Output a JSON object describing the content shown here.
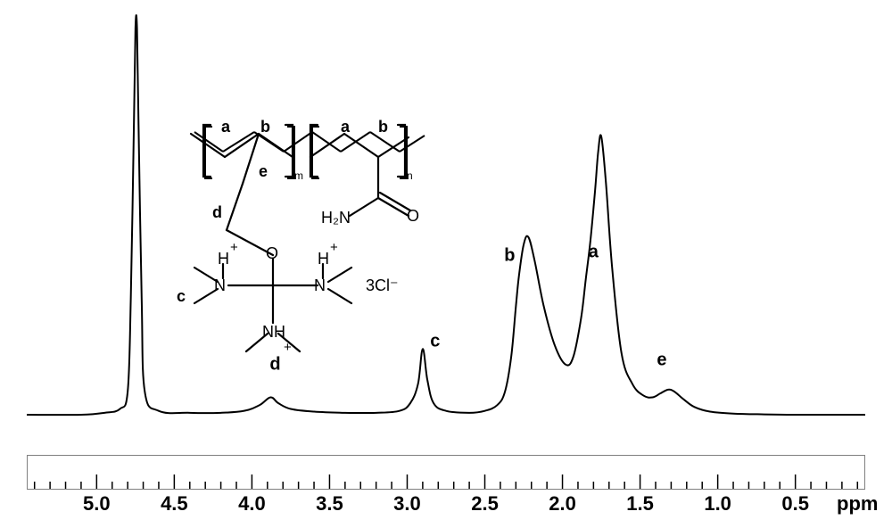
{
  "chart": {
    "type": "line",
    "background_color": "#ffffff",
    "line_color": "#000000",
    "line_width": 2,
    "title_fontsize": 22,
    "xlabel": "ppm",
    "x_reverse": true,
    "xlim": [
      0.05,
      5.45
    ],
    "ylim": [
      -3,
      105
    ],
    "major_ticks": [
      5.0,
      4.5,
      4.0,
      3.5,
      3.0,
      2.5,
      2.0,
      1.5,
      1.0,
      0.5
    ],
    "minor_tick_interval": 0.1,
    "axis_gap_top": 0,
    "axis_gap_bottom": 12,
    "ruler_border_color": "#808080",
    "tick_labels": [
      "5.0",
      "4.5",
      "4.0",
      "3.5",
      "3.0",
      "2.5",
      "2.0",
      "1.5",
      "1.0",
      "0.5"
    ],
    "baseline_y": 0,
    "spectrum_points": [
      [
        5.45,
        0
      ],
      [
        5.1,
        0
      ],
      [
        4.95,
        0.5
      ],
      [
        4.85,
        1.5
      ],
      [
        4.8,
        6
      ],
      [
        4.78,
        30
      ],
      [
        4.76,
        75
      ],
      [
        4.75,
        100
      ],
      [
        4.74,
        100
      ],
      [
        4.73,
        75
      ],
      [
        4.71,
        30
      ],
      [
        4.69,
        6
      ],
      [
        4.6,
        1
      ],
      [
        4.4,
        0.5
      ],
      [
        4.2,
        0.5
      ],
      [
        4.05,
        1
      ],
      [
        3.95,
        2.5
      ],
      [
        3.88,
        4.5
      ],
      [
        3.83,
        3
      ],
      [
        3.75,
        1.5
      ],
      [
        3.6,
        0.8
      ],
      [
        3.4,
        0.5
      ],
      [
        3.2,
        0.5
      ],
      [
        3.05,
        1
      ],
      [
        2.98,
        3
      ],
      [
        2.93,
        8
      ],
      [
        2.9,
        17
      ],
      [
        2.87,
        9
      ],
      [
        2.83,
        3
      ],
      [
        2.75,
        1
      ],
      [
        2.6,
        0.5
      ],
      [
        2.5,
        1
      ],
      [
        2.42,
        2.5
      ],
      [
        2.37,
        6
      ],
      [
        2.33,
        15
      ],
      [
        2.3,
        28
      ],
      [
        2.28,
        36
      ],
      [
        2.25,
        44
      ],
      [
        2.22,
        46
      ],
      [
        2.18,
        40
      ],
      [
        2.12,
        28
      ],
      [
        2.05,
        18
      ],
      [
        1.98,
        13
      ],
      [
        1.93,
        15
      ],
      [
        1.88,
        25
      ],
      [
        1.85,
        35
      ],
      [
        1.82,
        45
      ],
      [
        1.79,
        58
      ],
      [
        1.77,
        68
      ],
      [
        1.75,
        72
      ],
      [
        1.72,
        60
      ],
      [
        1.68,
        38
      ],
      [
        1.62,
        16
      ],
      [
        1.55,
        8
      ],
      [
        1.48,
        5
      ],
      [
        1.42,
        4.5
      ],
      [
        1.37,
        5.5
      ],
      [
        1.32,
        6.5
      ],
      [
        1.28,
        6
      ],
      [
        1.22,
        4
      ],
      [
        1.15,
        2
      ],
      [
        1.05,
        0.8
      ],
      [
        0.9,
        0.3
      ],
      [
        0.7,
        0.1
      ],
      [
        0.5,
        0
      ],
      [
        0.2,
        0
      ],
      [
        0.05,
        0
      ]
    ],
    "peak_labels": [
      {
        "text": "d",
        "ppm": 3.85,
        "y": 13
      },
      {
        "text": "c",
        "ppm": 2.82,
        "y": 19
      },
      {
        "text": "b",
        "ppm": 2.34,
        "y": 41
      },
      {
        "text": "a",
        "ppm": 1.8,
        "y": 42
      },
      {
        "text": "e",
        "ppm": 1.36,
        "y": 14
      }
    ]
  },
  "structure": {
    "labels": {
      "a1": "a",
      "b1": "b",
      "a2": "a",
      "b2": "b",
      "e": "e",
      "d": "d",
      "c": "c",
      "m": "m",
      "n": "n",
      "H2N": "H₂N",
      "O1": "O",
      "O2": "O",
      "NH1": "NH",
      "NH2": "NH",
      "H1": "H",
      "H2": "H",
      "plus1": "+",
      "plus2": "+",
      "plus3": "+",
      "N1": "N",
      "N2": "N",
      "counter": "3Cl⁻"
    }
  }
}
